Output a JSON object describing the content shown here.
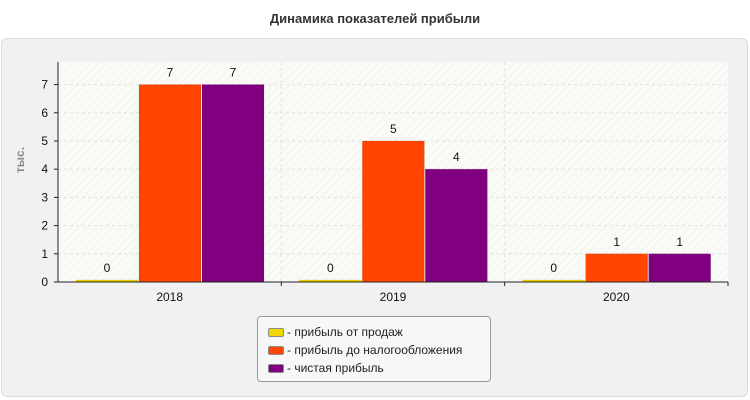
{
  "chart_data": {
    "type": "bar",
    "title": "Динамика показателей прибыли",
    "ylabel": "тыс.",
    "xlabel": "",
    "categories": [
      "2018",
      "2019",
      "2020"
    ],
    "ylim": [
      0,
      7.8
    ],
    "yticks": [
      "0",
      "1",
      "2",
      "3",
      "4",
      "5",
      "6",
      "7"
    ],
    "grid": true,
    "legend_position": "bottom",
    "series": [
      {
        "name": "- прибыль от продаж",
        "color": "#f2d600",
        "values": [
          0,
          0,
          0
        ],
        "labels": [
          "0",
          "0",
          "0"
        ]
      },
      {
        "name": "- прибыль до налогообложения",
        "color": "#ff4500",
        "values": [
          7,
          5,
          1
        ],
        "labels": [
          "7",
          "5",
          "1"
        ]
      },
      {
        "name": "- чистая прибыль",
        "color": "#800080",
        "values": [
          7,
          4,
          1
        ],
        "labels": [
          "7",
          "4",
          "1"
        ]
      }
    ]
  }
}
